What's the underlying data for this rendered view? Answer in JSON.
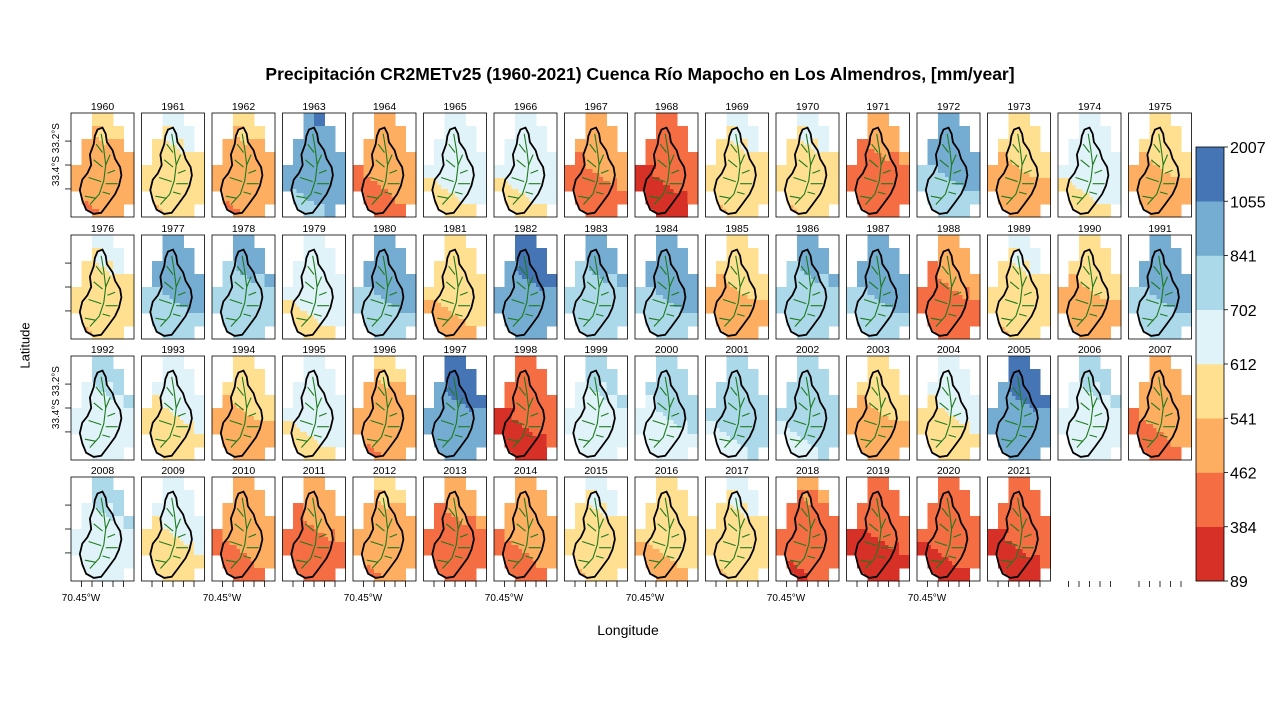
{
  "chart_data": {
    "type": "heatmap",
    "title": "Precipitación CR2METv25 (1960-2021) Cuenca Río Mapocho en Los Almendros, [mm/year]",
    "xlabel": "Longitude",
    "ylabel": "Latitude",
    "x_tick_label": "70.45°W",
    "y_tick_labels": [
      "33.4°S",
      "33.2°S"
    ],
    "panels": [
      "1960",
      "1961",
      "1962",
      "1963",
      "1964",
      "1965",
      "1966",
      "1967",
      "1968",
      "1969",
      "1970",
      "1971",
      "1972",
      "1973",
      "1974",
      "1975",
      "1976",
      "1977",
      "1978",
      "1979",
      "1980",
      "1981",
      "1982",
      "1983",
      "1984",
      "1985",
      "1986",
      "1987",
      "1988",
      "1989",
      "1990",
      "1991",
      "1992",
      "1993",
      "1994",
      "1995",
      "1996",
      "1997",
      "1998",
      "1999",
      "2000",
      "2001",
      "2002",
      "2003",
      "2004",
      "2005",
      "2006",
      "2007",
      "2008",
      "2009",
      "2010",
      "2011",
      "2012",
      "2013",
      "2014",
      "2015",
      "2016",
      "2017",
      "2018",
      "2019",
      "2020",
      "2021"
    ],
    "panel_wetness": [
      0.3,
      0.45,
      0.3,
      0.85,
      0.25,
      0.55,
      0.55,
      0.22,
      0.1,
      0.45,
      0.45,
      0.18,
      0.8,
      0.35,
      0.55,
      0.35,
      0.45,
      0.8,
      0.75,
      0.55,
      0.8,
      0.4,
      0.9,
      0.75,
      0.8,
      0.35,
      0.75,
      0.8,
      0.2,
      0.45,
      0.35,
      0.8,
      0.6,
      0.5,
      0.35,
      0.55,
      0.3,
      0.9,
      0.1,
      0.6,
      0.65,
      0.7,
      0.7,
      0.35,
      0.5,
      0.9,
      0.6,
      0.25,
      0.6,
      0.5,
      0.25,
      0.2,
      0.3,
      0.18,
      0.25,
      0.45,
      0.4,
      0.45,
      0.15,
      0.08,
      0.12,
      0.1
    ],
    "colorbar": {
      "breaks": [
        "89",
        "384",
        "462",
        "541",
        "612",
        "702",
        "841",
        "1055",
        "2007"
      ],
      "colors": [
        "#d73027",
        "#f46d43",
        "#fdae61",
        "#fee090",
        "#e0f3f8",
        "#abd9e9",
        "#74add1",
        "#4575b4"
      ]
    },
    "legend_placement": "right",
    "grid": false
  }
}
